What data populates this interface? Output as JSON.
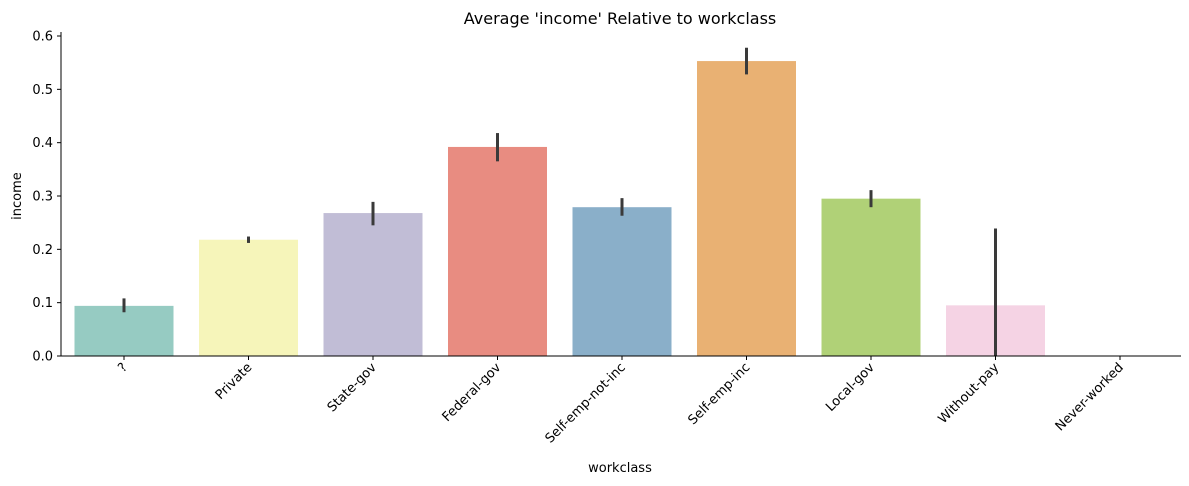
{
  "chart_data": {
    "type": "bar",
    "title": "Average 'income' Relative to workclass",
    "xlabel": "workclass",
    "ylabel": "income",
    "ylim": [
      0,
      0.6
    ],
    "yticks": [
      0.0,
      0.1,
      0.2,
      0.3,
      0.4,
      0.5,
      0.6
    ],
    "ytick_labels": [
      "0.0",
      "0.1",
      "0.2",
      "0.3",
      "0.4",
      "0.5",
      "0.6"
    ],
    "categories": [
      "?",
      "Private",
      "State-gov",
      "Federal-gov",
      "Self-emp-not-inc",
      "Self-emp-inc",
      "Local-gov",
      "Without-pay",
      "Never-worked"
    ],
    "values": [
      0.094,
      0.218,
      0.268,
      0.392,
      0.279,
      0.553,
      0.295,
      0.095,
      0.0
    ],
    "error_low": [
      0.082,
      0.212,
      0.245,
      0.365,
      0.263,
      0.528,
      0.279,
      0.0,
      0.0
    ],
    "error_high": [
      0.108,
      0.224,
      0.289,
      0.418,
      0.296,
      0.578,
      0.311,
      0.239,
      0.0
    ],
    "colors": [
      "#96cbc2",
      "#f6f5ba",
      "#c1bdd6",
      "#e88c81",
      "#8aafc9",
      "#e9b173",
      "#b0d177",
      "#f5d3e4",
      "#cfcfcf"
    ],
    "grid": false,
    "legend": "none"
  }
}
